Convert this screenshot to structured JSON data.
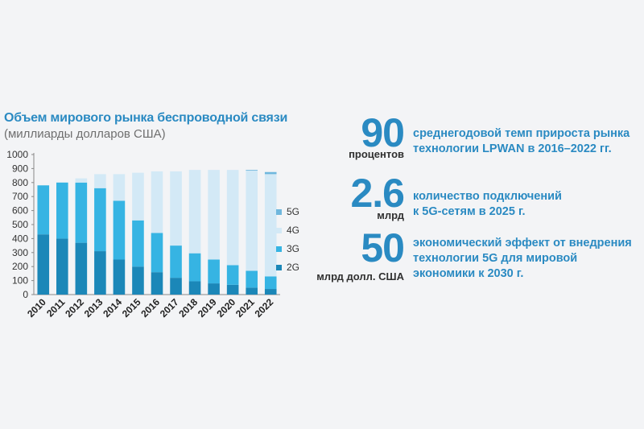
{
  "chart_data": {
    "type": "bar",
    "stacked": true,
    "title": "Объем мирового рынка беспроводной связи",
    "subtitle": "(миллиарды долларов США)",
    "categories": [
      "2010",
      "2011",
      "2012",
      "2013",
      "2014",
      "2015",
      "2016",
      "2017",
      "2018",
      "2019",
      "2020",
      "2021",
      "2022"
    ],
    "ylim": [
      0,
      1000
    ],
    "yticks": [
      0,
      100,
      200,
      300,
      400,
      500,
      600,
      700,
      800,
      900,
      1000
    ],
    "grid": false,
    "legend_position": "right",
    "series": [
      {
        "name": "2G",
        "color": "#1b87b8",
        "values": [
          430,
          400,
          370,
          310,
          250,
          200,
          160,
          120,
          95,
          80,
          70,
          50,
          40
        ]
      },
      {
        "name": "3G",
        "color": "#36b4e3",
        "values": [
          350,
          400,
          430,
          450,
          420,
          330,
          280,
          230,
          200,
          170,
          140,
          120,
          90
        ]
      },
      {
        "name": "4G",
        "color": "#d3e9f6",
        "values": [
          0,
          0,
          30,
          100,
          190,
          340,
          440,
          530,
          595,
          640,
          680,
          715,
          730
        ]
      },
      {
        "name": "5G",
        "color": "#6fb7dd",
        "values": [
          0,
          0,
          0,
          0,
          0,
          0,
          0,
          0,
          0,
          0,
          0,
          5,
          15
        ]
      }
    ]
  },
  "stats": [
    {
      "value": "90",
      "unit": "процентов",
      "desc": [
        "среднегодовой темп прироста рынка",
        "технологии LPWAN в 2016–2022 гг."
      ]
    },
    {
      "value": "2.6",
      "unit": "млрд",
      "desc": [
        "количество подключений",
        "к 5G-сетям в 2025 г."
      ]
    },
    {
      "value": "50",
      "unit": "млрд долл. США",
      "desc": [
        "экономический эффект от внедрения",
        "технологии 5G для мировой",
        "экономики к 2030 г."
      ]
    }
  ]
}
